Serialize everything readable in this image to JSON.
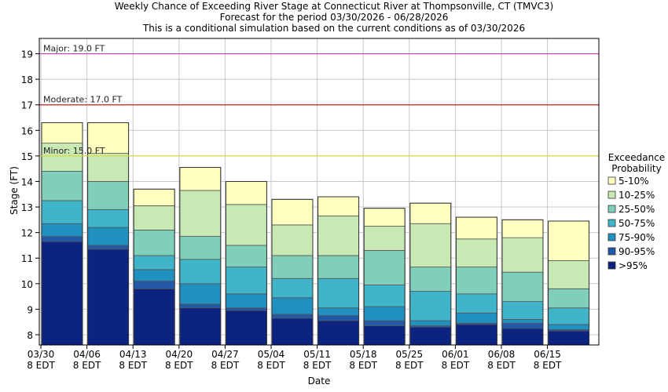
{
  "chart_data": {
    "type": "bar",
    "title_lines": [
      "Weekly Chance of Exceeding River Stage at Connecticut River at Thompsonville, CT (TMVC3)",
      "Forecast for the period 03/30/2026 - 06/28/2026",
      "This is a conditional simulation based on the current conditions as of 03/30/2026"
    ],
    "xlabel": "Date",
    "ylabel": "Stage (FT)",
    "ylim": [
      7.6,
      19.6
    ],
    "yticks": [
      8,
      9,
      10,
      11,
      12,
      13,
      14,
      15,
      16,
      17,
      18,
      19
    ],
    "x_tick_labels": [
      [
        "03/30",
        "8 EDT"
      ],
      [
        "04/06",
        "8 EDT"
      ],
      [
        "04/13",
        "8 EDT"
      ],
      [
        "04/20",
        "8 EDT"
      ],
      [
        "04/27",
        "8 EDT"
      ],
      [
        "05/04",
        "8 EDT"
      ],
      [
        "05/11",
        "8 EDT"
      ],
      [
        "05/18",
        "8 EDT"
      ],
      [
        "05/25",
        "8 EDT"
      ],
      [
        "06/01",
        "8 EDT"
      ],
      [
        "06/08",
        "8 EDT"
      ],
      [
        "06/15",
        "8 EDT"
      ]
    ],
    "flood_levels": [
      {
        "label": "Major: 19.0 FT",
        "value": 19.0,
        "color": "#c040c0"
      },
      {
        "label": "Moderate: 17.0 FT",
        "value": 17.0,
        "color": "#cc2222"
      },
      {
        "label": "Minor: 15.0 FT",
        "value": 15.0,
        "color": "#d8d840"
      }
    ],
    "legend": {
      "title_lines": [
        "Exceedance",
        "Probability"
      ],
      "placement": "right",
      "entries": [
        {
          "label": "5-10%",
          "color": "#ffffc0"
        },
        {
          "label": "10-25%",
          "color": "#c8e8b4"
        },
        {
          "label": "25-50%",
          "color": "#80cfbb"
        },
        {
          "label": "50-75%",
          "color": "#40b4c8"
        },
        {
          "label": "75-90%",
          "color": "#2090c0"
        },
        {
          "label": "90-95%",
          "color": "#2258a8"
        },
        {
          "label": ">95%",
          "color": "#0c2480"
        }
      ]
    },
    "weeks": [
      {
        "levels": [
          11.65,
          11.85,
          12.35,
          13.25,
          14.4,
          15.5,
          16.3
        ]
      },
      {
        "levels": [
          11.35,
          11.5,
          12.2,
          12.9,
          14.0,
          15.1,
          16.3
        ]
      },
      {
        "levels": [
          9.8,
          10.1,
          10.55,
          11.1,
          12.1,
          13.05,
          13.7
        ]
      },
      {
        "levels": [
          9.05,
          9.2,
          10.0,
          10.95,
          11.85,
          13.65,
          14.55
        ]
      },
      {
        "levels": [
          8.95,
          9.05,
          9.6,
          10.65,
          11.5,
          13.1,
          14.0
        ]
      },
      {
        "levels": [
          8.65,
          8.8,
          9.45,
          10.2,
          11.1,
          12.3,
          13.3
        ]
      },
      {
        "levels": [
          8.55,
          8.75,
          9.05,
          10.2,
          11.1,
          12.65,
          13.4
        ]
      },
      {
        "levels": [
          8.35,
          8.55,
          9.1,
          9.95,
          11.3,
          12.25,
          12.95
        ]
      },
      {
        "levels": [
          8.3,
          8.35,
          8.55,
          9.7,
          10.65,
          12.35,
          13.15
        ]
      },
      {
        "levels": [
          8.4,
          8.45,
          8.85,
          9.6,
          10.65,
          11.75,
          12.6
        ]
      },
      {
        "levels": [
          8.25,
          8.45,
          8.6,
          9.3,
          10.45,
          11.8,
          12.5
        ]
      },
      {
        "levels": [
          8.15,
          8.2,
          8.4,
          9.05,
          9.8,
          10.9,
          12.45
        ]
      }
    ]
  }
}
